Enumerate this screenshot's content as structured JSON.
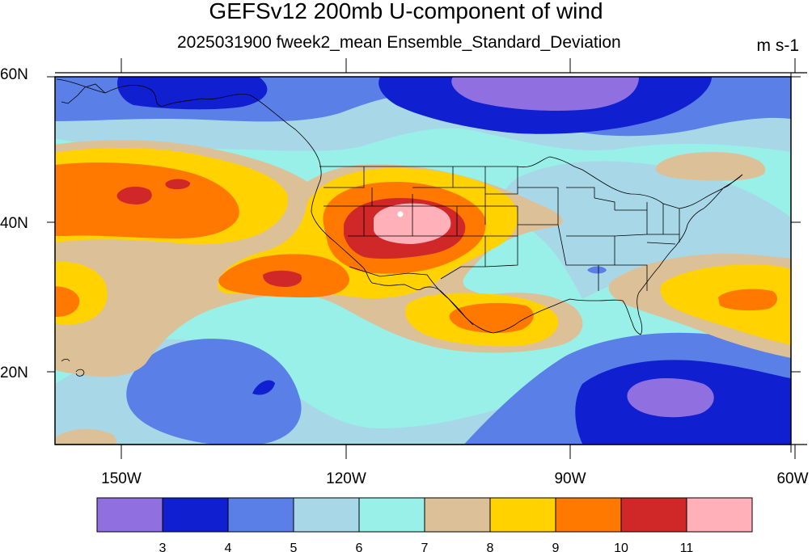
{
  "title": "GEFSv12 200mb U-component of wind",
  "subtitle": "2025031900 fweek2_mean Ensemble_Standard_Deviation",
  "units": "m s-1",
  "map": {
    "lon_range": [
      -162,
      -60
    ],
    "lat_range": [
      10,
      60
    ],
    "lat_labels": [
      "60N",
      "40N",
      "20N"
    ],
    "lon_labels": [
      "150W",
      "120W",
      "90W",
      "60W"
    ],
    "field": "200mb U-component of wind, ensemble standard deviation",
    "region": "Western Hemisphere: North Pacific, North America, Gulf of Mexico, western North Atlantic",
    "features": [
      {
        "type": "maximum",
        "location": "Four Corners / southern Rockies",
        "level": "above 11",
        "color": "#ffb0b8"
      },
      {
        "type": "minimum",
        "location": "south of the Gulf of Alaska",
        "level": "below 4",
        "color": "#1020d0"
      },
      {
        "type": "minimum",
        "location": "eastern Pacific near 15N",
        "level": "below 4",
        "color": "#1020d0"
      },
      {
        "type": "minimum",
        "location": "Caribbean Sea",
        "level": "below 3",
        "color": "#9070e0"
      },
      {
        "type": "minimum",
        "location": "eastern Canada / Labrador",
        "level": "below 3",
        "color": "#9070e0"
      }
    ]
  },
  "colorbar": {
    "colors": [
      "#9070e0",
      "#1020d0",
      "#5a80e8",
      "#a8d8e8",
      "#98f0e8",
      "#dcc098",
      "#ffd200",
      "#ff7800",
      "#d02828",
      "#ffb0b8"
    ],
    "labels": [
      "3",
      "4",
      "5",
      "6",
      "7",
      "8",
      "9",
      "10",
      "11"
    ]
  }
}
